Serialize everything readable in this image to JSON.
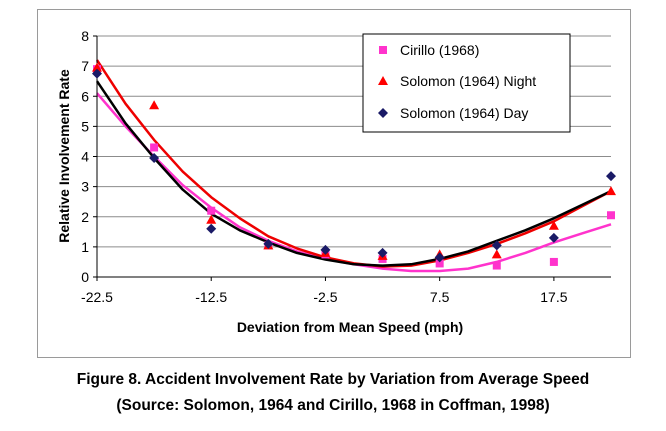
{
  "chart_data": {
    "type": "scatter",
    "xlabel": "Deviation from Mean Speed (mph)",
    "ylabel": "Relative Involvement Rate",
    "xlim": [
      -22.5,
      22.5
    ],
    "ylim": [
      0,
      8
    ],
    "x_ticks": [
      -22.5,
      -12.5,
      -2.5,
      7.5,
      17.5
    ],
    "y_ticks": [
      0,
      1,
      2,
      3,
      4,
      5,
      6,
      7,
      8
    ],
    "x_tick_labels": [
      "-22.5",
      "-12.5",
      "-2.5",
      "7.5",
      "17.5"
    ],
    "y_tick_labels": [
      "0",
      "1",
      "2",
      "3",
      "4",
      "5",
      "6",
      "7",
      "8"
    ],
    "grid": "horizontal",
    "legend_position": "top-right",
    "series": [
      {
        "name": "Cirillo (1968)",
        "marker": "square",
        "color": "#ff33cc",
        "points": [
          [
            -22.5,
            6.9
          ],
          [
            -17.5,
            4.3
          ],
          [
            -12.5,
            2.2
          ],
          [
            -7.5,
            1.05
          ],
          [
            -2.5,
            0.75
          ],
          [
            2.5,
            0.6
          ],
          [
            7.5,
            0.45
          ],
          [
            12.5,
            0.38
          ],
          [
            17.5,
            0.5
          ],
          [
            22.5,
            2.05
          ]
        ],
        "fit": [
          [
            -22.5,
            6.1
          ],
          [
            -20,
            5.0
          ],
          [
            -17.5,
            4.0
          ],
          [
            -15,
            3.05
          ],
          [
            -12.5,
            2.3
          ],
          [
            -10,
            1.65
          ],
          [
            -7.5,
            1.2
          ],
          [
            -5,
            0.85
          ],
          [
            -2.5,
            0.6
          ],
          [
            0,
            0.42
          ],
          [
            2.5,
            0.28
          ],
          [
            5,
            0.2
          ],
          [
            7.5,
            0.2
          ],
          [
            10,
            0.28
          ],
          [
            12.5,
            0.5
          ],
          [
            15,
            0.8
          ],
          [
            17.5,
            1.15
          ],
          [
            20,
            1.45
          ],
          [
            22.5,
            1.75
          ]
        ]
      },
      {
        "name": "Solomon (1964) Night",
        "marker": "triangle",
        "color": "#ff0000",
        "points": [
          [
            -22.5,
            6.95
          ],
          [
            -17.5,
            5.7
          ],
          [
            -12.5,
            1.9
          ],
          [
            -7.5,
            1.05
          ],
          [
            -2.5,
            0.8
          ],
          [
            2.5,
            0.7
          ],
          [
            7.5,
            0.75
          ],
          [
            12.5,
            0.75
          ],
          [
            17.5,
            1.7
          ],
          [
            22.5,
            2.85
          ]
        ],
        "fit": [
          [
            -22.5,
            7.2
          ],
          [
            -20,
            5.75
          ],
          [
            -17.5,
            4.55
          ],
          [
            -15,
            3.5
          ],
          [
            -12.5,
            2.65
          ],
          [
            -10,
            1.95
          ],
          [
            -7.5,
            1.35
          ],
          [
            -5,
            0.95
          ],
          [
            -2.5,
            0.65
          ],
          [
            0,
            0.45
          ],
          [
            2.5,
            0.35
          ],
          [
            5,
            0.38
          ],
          [
            7.5,
            0.55
          ],
          [
            10,
            0.8
          ],
          [
            12.5,
            1.1
          ],
          [
            15,
            1.45
          ],
          [
            17.5,
            1.85
          ],
          [
            20,
            2.35
          ],
          [
            22.5,
            2.85
          ]
        ]
      },
      {
        "name": "Solomon  (1964) Day",
        "marker": "diamond",
        "color": "#1a1a66",
        "points": [
          [
            -22.5,
            6.75
          ],
          [
            -17.5,
            3.95
          ],
          [
            -12.5,
            1.6
          ],
          [
            -7.5,
            1.1
          ],
          [
            -2.5,
            0.9
          ],
          [
            2.5,
            0.8
          ],
          [
            7.5,
            0.65
          ],
          [
            12.5,
            1.05
          ],
          [
            17.5,
            1.3
          ],
          [
            22.5,
            3.35
          ]
        ],
        "fit": [
          [
            -22.5,
            6.5
          ],
          [
            -20,
            5.1
          ],
          [
            -17.5,
            3.95
          ],
          [
            -15,
            2.9
          ],
          [
            -12.5,
            2.1
          ],
          [
            -10,
            1.55
          ],
          [
            -7.5,
            1.15
          ],
          [
            -5,
            0.8
          ],
          [
            -2.5,
            0.58
          ],
          [
            0,
            0.42
          ],
          [
            2.5,
            0.38
          ],
          [
            5,
            0.42
          ],
          [
            7.5,
            0.6
          ],
          [
            10,
            0.85
          ],
          [
            12.5,
            1.2
          ],
          [
            15,
            1.55
          ],
          [
            17.5,
            1.95
          ],
          [
            20,
            2.4
          ],
          [
            22.5,
            2.85
          ]
        ]
      }
    ]
  },
  "caption": {
    "line1": "Figure 8. Accident Involvement Rate by Variation from Average Speed",
    "line2": "(Source: Solomon, 1964 and Cirillo, 1968 in Coffman, 1998)"
  }
}
